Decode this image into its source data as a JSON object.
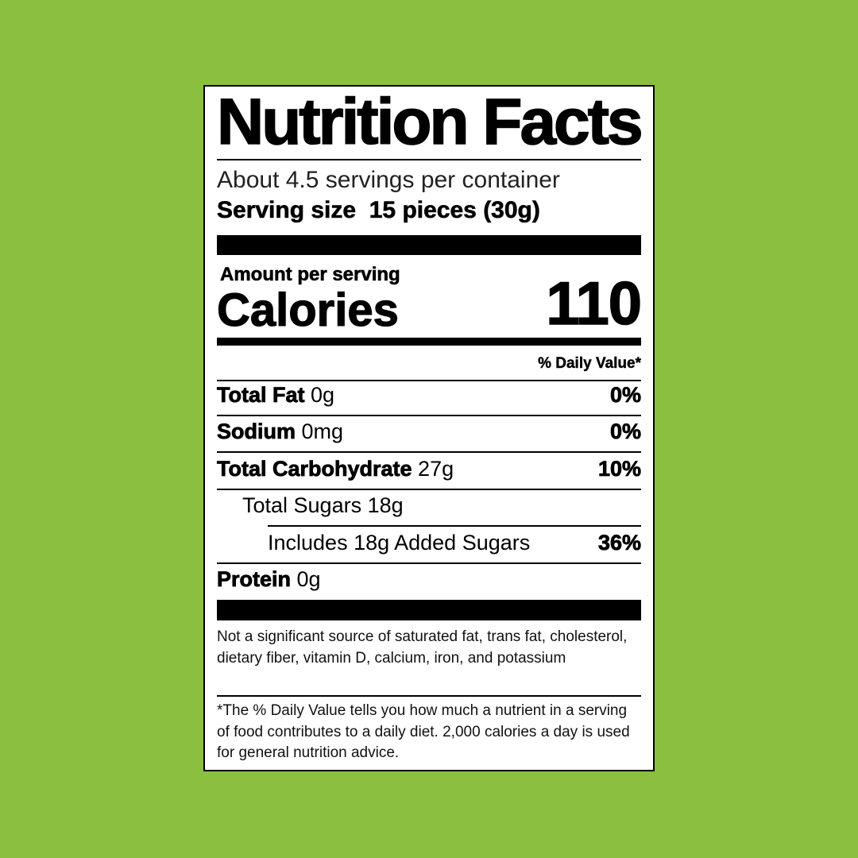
{
  "colors": {
    "background": "#8abf40",
    "label": "#ffffff",
    "ink": "#000000"
  },
  "title": "Nutrition Facts",
  "servings_per_container": "About 4.5 servings per container",
  "serving_size": {
    "label": "Serving size",
    "value": "15 pieces (30g)"
  },
  "amount_per_serving": "Amount per serving",
  "calories": {
    "label": "Calories",
    "value": "110"
  },
  "daily_value_header": "% Daily Value*",
  "nutrients": [
    {
      "name": "Total Fat",
      "amount": "0g",
      "dv": "0%"
    },
    {
      "name": "Sodium",
      "amount": "0mg",
      "dv": "0%"
    },
    {
      "name": "Total Carbohydrate",
      "amount": "27g",
      "dv": "10%"
    },
    {
      "name": "Total Sugars 18g",
      "amount": "",
      "dv": ""
    },
    {
      "name": "Includes 18g Added Sugars",
      "amount": "",
      "dv": "36%"
    },
    {
      "name": "Protein",
      "amount": "0g",
      "dv": ""
    }
  ],
  "footnote_1": "Not a significant source of saturated fat, trans fat, cholesterol, dietary fiber, vitamin D, calcium, iron, and potassium",
  "footnote_2": "*The % Daily Value tells you how much a nutrient in a serving of food contributes to a daily diet. 2,000 calories a day is used for general nutrition advice."
}
